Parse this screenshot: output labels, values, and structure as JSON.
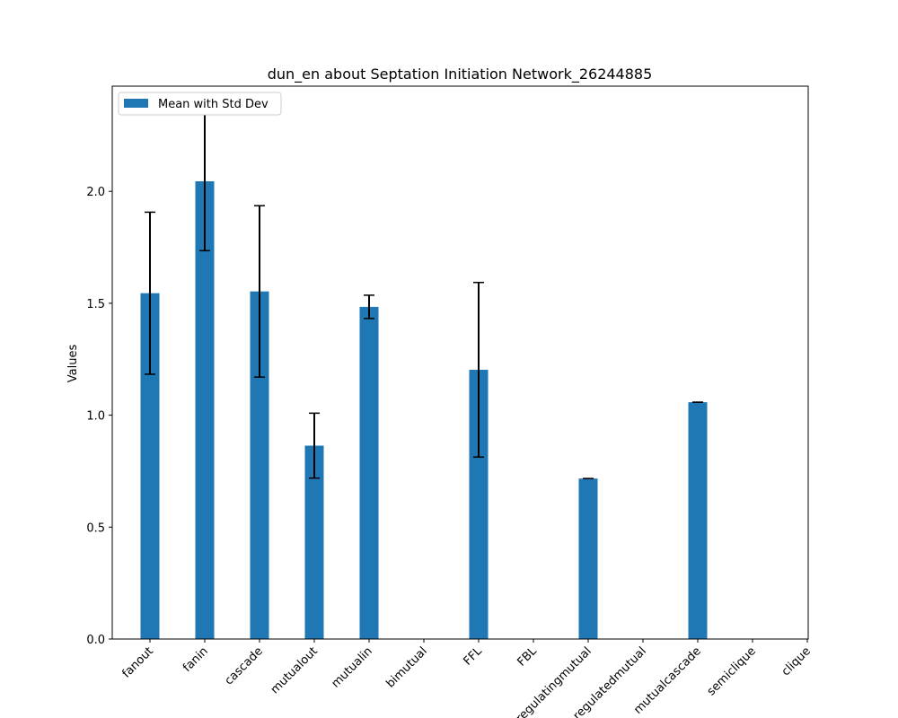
{
  "chart_data": {
    "type": "bar",
    "title": "dun_en about Septation Initiation Network_26244885",
    "xlabel": "",
    "ylabel": "Values",
    "ylim": [
      0,
      2.47
    ],
    "yticks": [
      "0.0",
      "0.5",
      "1.0",
      "1.5",
      "2.0"
    ],
    "legend": {
      "label": "Mean with Std Dev",
      "placement": "top-left"
    },
    "bar_color": "#1f77b4",
    "errorbar_color": "#000000",
    "categories": [
      "fanout",
      "fanin",
      "cascade",
      "mutualout",
      "mutualin",
      "bimutual",
      "FFL",
      "FBL",
      "regulatingmutual",
      "regulatedmutual",
      "mutualcascade",
      "semiclique",
      "clique"
    ],
    "values": [
      1.545,
      2.045,
      1.553,
      0.864,
      1.484,
      0,
      1.203,
      0,
      0.717,
      0,
      1.058,
      0,
      0
    ],
    "errors": [
      0.362,
      0.31,
      0.383,
      0.145,
      0.052,
      0,
      0.39,
      0,
      0.0,
      0,
      0.0,
      0,
      0
    ]
  }
}
